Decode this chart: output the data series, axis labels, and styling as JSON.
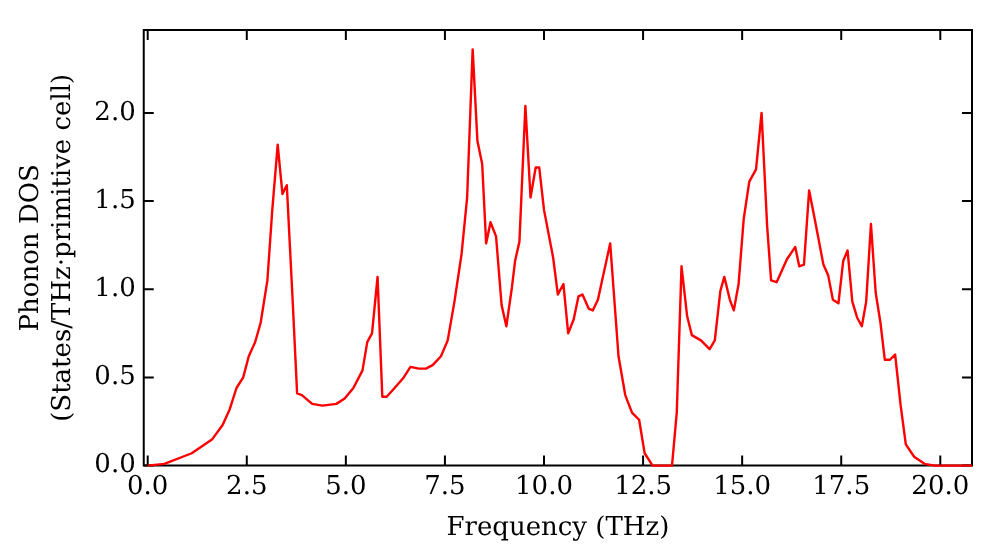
{
  "chart_data": {
    "type": "line",
    "xlabel": "Frequency (THz)",
    "ylabel": "Phonon DOS\n(States/THz·primitive cell)",
    "xlim": [
      -0.1,
      20.8
    ],
    "ylim": [
      0,
      2.47
    ],
    "xticks": [
      {
        "value": 0,
        "label": "0.0"
      },
      {
        "value": 2.5,
        "label": "2.5"
      },
      {
        "value": 5,
        "label": "5.0"
      },
      {
        "value": 7.5,
        "label": "7.5"
      },
      {
        "value": 10,
        "label": "10.0"
      },
      {
        "value": 12.5,
        "label": "12.5"
      },
      {
        "value": 15,
        "label": "15.0"
      },
      {
        "value": 17.5,
        "label": "17.5"
      },
      {
        "value": 20,
        "label": "20.0"
      }
    ],
    "yticks": [
      {
        "value": 0,
        "label": "0.0"
      },
      {
        "value": 0.5,
        "label": "0.5"
      },
      {
        "value": 1,
        "label": "1.0"
      },
      {
        "value": 1.5,
        "label": "1.5"
      },
      {
        "value": 2,
        "label": "2.0"
      }
    ],
    "grid": false,
    "legend": false,
    "marker": "none",
    "line_style": "solid",
    "series": [
      {
        "color": "#ff0000",
        "x": [
          0,
          0.42,
          1.11,
          1.63,
          1.89,
          2.07,
          2.24,
          2.41,
          2.55,
          2.71,
          2.85,
          3.02,
          3.14,
          3.28,
          3.4,
          3.51,
          3.65,
          3.77,
          3.89,
          4.15,
          4.41,
          4.76,
          4.97,
          5.19,
          5.42,
          5.54,
          5.66,
          5.8,
          5.92,
          6.03,
          6.23,
          6.46,
          6.63,
          6.84,
          7.02,
          7.19,
          7.4,
          7.57,
          7.74,
          7.92,
          8.06,
          8.2,
          8.32,
          8.44,
          8.54,
          8.65,
          8.79,
          8.93,
          9.05,
          9.19,
          9.27,
          9.38,
          9.53,
          9.66,
          9.79,
          9.88,
          10,
          10.23,
          10.35,
          10.49,
          10.61,
          10.75,
          10.87,
          10.97,
          11.13,
          11.23,
          11.36,
          11.67,
          11.88,
          12.05,
          12.22,
          12.4,
          12.54,
          12.74,
          13.23,
          13.35,
          13.47,
          13.61,
          13.73,
          13.96,
          14.18,
          14.31,
          14.45,
          14.55,
          14.69,
          14.79,
          14.91,
          15.04,
          15.18,
          15.35,
          15.49,
          15.63,
          15.73,
          15.87,
          16.13,
          16.34,
          16.44,
          16.56,
          16.69,
          16.83,
          17.05,
          17.17,
          17.29,
          17.43,
          17.55,
          17.66,
          17.78,
          17.9,
          18.02,
          18.13,
          18.25,
          18.37,
          18.49,
          18.6,
          18.73,
          18.86,
          19,
          19.13,
          19.34,
          19.6,
          19.86,
          20.8
        ],
        "values": [
          0,
          0.01,
          0.07,
          0.15,
          0.23,
          0.32,
          0.44,
          0.5,
          0.62,
          0.7,
          0.81,
          1.05,
          1.44,
          1.82,
          1.54,
          1.59,
          0.97,
          0.41,
          0.4,
          0.35,
          0.34,
          0.35,
          0.38,
          0.44,
          0.54,
          0.7,
          0.75,
          1.07,
          0.39,
          0.39,
          0.44,
          0.5,
          0.56,
          0.55,
          0.55,
          0.57,
          0.62,
          0.71,
          0.93,
          1.2,
          1.52,
          2.36,
          1.84,
          1.71,
          1.26,
          1.38,
          1.3,
          0.91,
          0.79,
          1.01,
          1.16,
          1.27,
          2.04,
          1.52,
          1.69,
          1.69,
          1.45,
          1.18,
          0.97,
          1.03,
          0.75,
          0.83,
          0.96,
          0.97,
          0.89,
          0.88,
          0.94,
          1.26,
          0.62,
          0.4,
          0.3,
          0.26,
          0.07,
          0,
          0,
          0.3,
          1.13,
          0.85,
          0.74,
          0.71,
          0.66,
          0.71,
          0.99,
          1.07,
          0.94,
          0.88,
          1.03,
          1.4,
          1.61,
          1.68,
          2,
          1.36,
          1.05,
          1.04,
          1.17,
          1.24,
          1.13,
          1.14,
          1.56,
          1.4,
          1.14,
          1.08,
          0.94,
          0.92,
          1.16,
          1.22,
          0.93,
          0.84,
          0.79,
          0.93,
          1.37,
          0.98,
          0.81,
          0.6,
          0.6,
          0.63,
          0.34,
          0.12,
          0.05,
          0.01,
          0,
          0
        ]
      }
    ]
  }
}
